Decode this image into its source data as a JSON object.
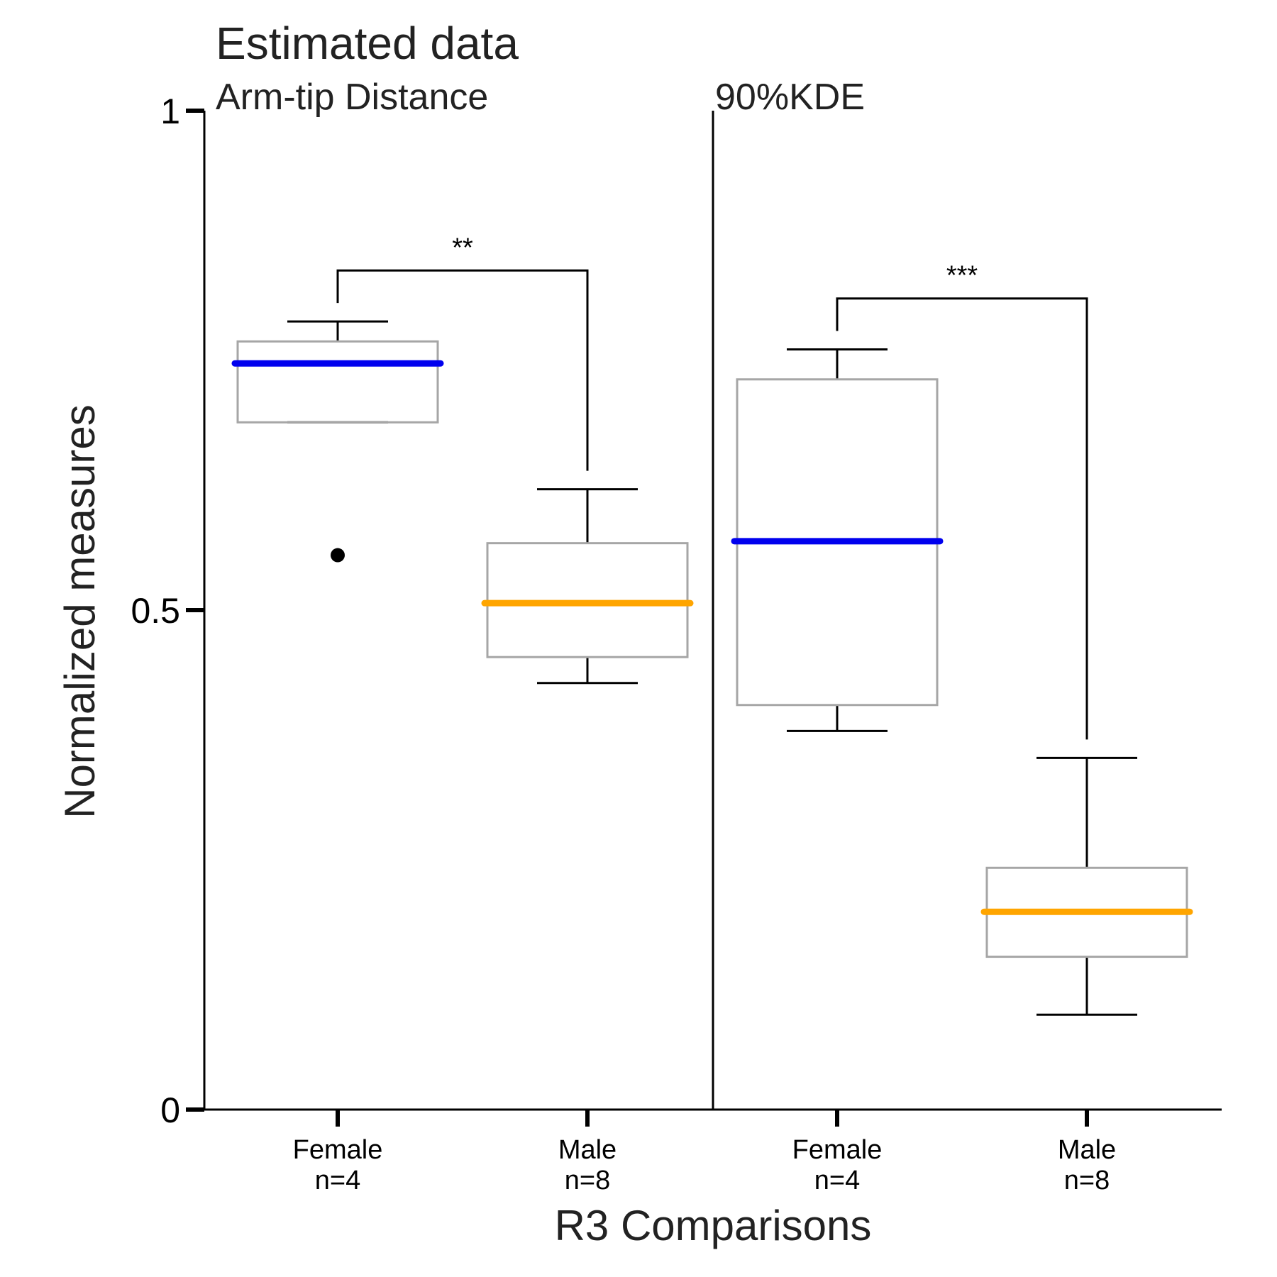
{
  "chart_data": {
    "type": "box",
    "title": "Estimated data",
    "xlabel": "R3 Comparisons",
    "ylabel": "Normalized measures",
    "ylim": [
      0,
      1
    ],
    "yticks": [
      {
        "value": 0,
        "label": "0"
      },
      {
        "value": 0.5,
        "label": "0.5"
      },
      {
        "value": 1,
        "label": "1"
      }
    ],
    "grid": false,
    "colors": {
      "female_median": "#0000ee",
      "male_median": "#ffa500",
      "box_edge": "#a6a6a6",
      "whisker": "#000000",
      "outlier": "#000000"
    },
    "panels": [
      {
        "title": "Arm-tip Distance",
        "groups": [
          {
            "label": "Female",
            "n_label": "n=4",
            "median_color": "female_median",
            "whisker_low": 0.688,
            "q1": 0.688,
            "median": 0.747,
            "q3": 0.769,
            "whisker_high": 0.789,
            "outliers": [
              0.555
            ]
          },
          {
            "label": "Male",
            "n_label": "n=8",
            "median_color": "male_median",
            "whisker_low": 0.427,
            "q1": 0.453,
            "median": 0.507,
            "q3": 0.567,
            "whisker_high": 0.621,
            "outliers": []
          }
        ],
        "significance": {
          "label": "**",
          "level": 0.84
        }
      },
      {
        "title": "90%KDE",
        "groups": [
          {
            "label": "Female",
            "n_label": "n=4",
            "median_color": "female_median",
            "whisker_low": 0.379,
            "q1": 0.405,
            "median": 0.569,
            "q3": 0.731,
            "whisker_high": 0.761,
            "outliers": []
          },
          {
            "label": "Male",
            "n_label": "n=8",
            "median_color": "male_median",
            "whisker_low": 0.095,
            "q1": 0.153,
            "median": 0.198,
            "q3": 0.242,
            "whisker_high": 0.352,
            "outliers": []
          }
        ],
        "significance": {
          "label": "***",
          "level": 0.812
        }
      }
    ]
  }
}
